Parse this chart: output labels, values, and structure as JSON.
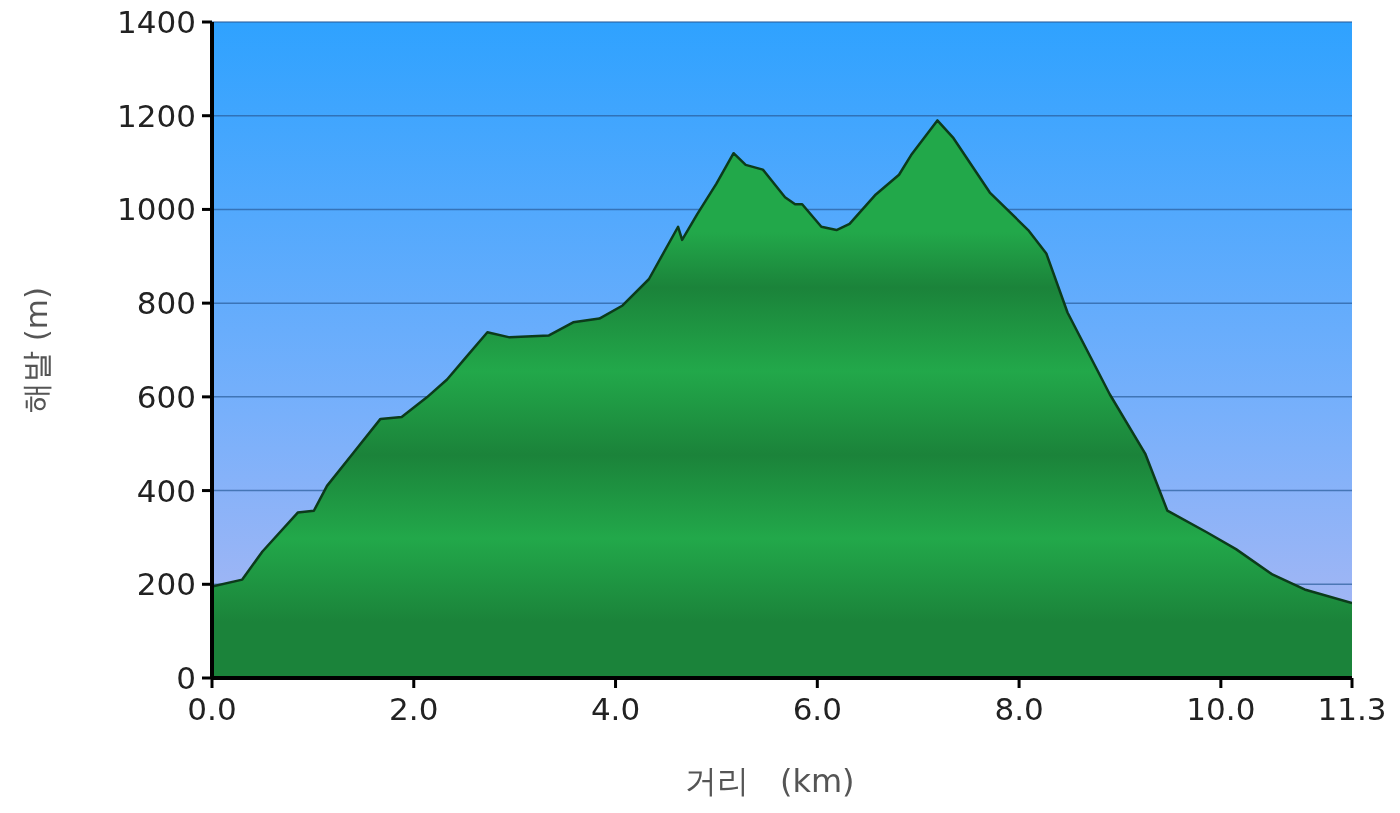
{
  "chart_data": {
    "type": "area",
    "xlabel": "거리   (km)",
    "ylabel": "해발 (m)",
    "x": [
      0,
      0.3,
      0.5,
      0.85,
      1.01,
      1.14,
      1.4,
      1.67,
      1.88,
      2.13,
      2.33,
      2.5,
      2.73,
      2.95,
      3.34,
      3.58,
      3.84,
      4.07,
      4.33,
      4.62,
      4.66,
      4.81,
      5.0,
      5.17,
      5.29,
      5.46,
      5.68,
      5.78,
      5.85,
      6.04,
      6.19,
      6.32,
      6.58,
      6.81,
      6.93,
      7.19,
      7.35,
      7.71,
      8.09,
      8.27,
      8.48,
      8.9,
      9.25,
      9.47,
      9.86,
      10.15,
      10.51,
      10.83,
      11.3
    ],
    "values": [
      195,
      210,
      270,
      353,
      357,
      410,
      480,
      553,
      557,
      599,
      637,
      680,
      738,
      727,
      731,
      759,
      767,
      795,
      851,
      963,
      935,
      990,
      1055,
      1120,
      1095,
      1085,
      1026,
      1011,
      1011,
      963,
      956,
      969,
      1032,
      1074,
      1116,
      1190,
      1152,
      1036,
      956,
      906,
      780,
      605,
      479,
      357,
      311,
      275,
      221,
      189,
      160
    ],
    "color": "#22a84a",
    "xlim": [
      0,
      11.3
    ],
    "xticks": [
      {
        "value": 0,
        "label": "0.0"
      },
      {
        "value": 2,
        "label": "2.0"
      },
      {
        "value": 4,
        "label": "4.0"
      },
      {
        "value": 6,
        "label": "6.0"
      },
      {
        "value": 8,
        "label": "8.0"
      },
      {
        "value": 10,
        "label": "10.0"
      },
      11.3
    ],
    "ylim": [
      0,
      1400
    ],
    "yticks": [
      0,
      200,
      400,
      600,
      800,
      1000,
      1200,
      1400
    ],
    "grid": "y"
  }
}
